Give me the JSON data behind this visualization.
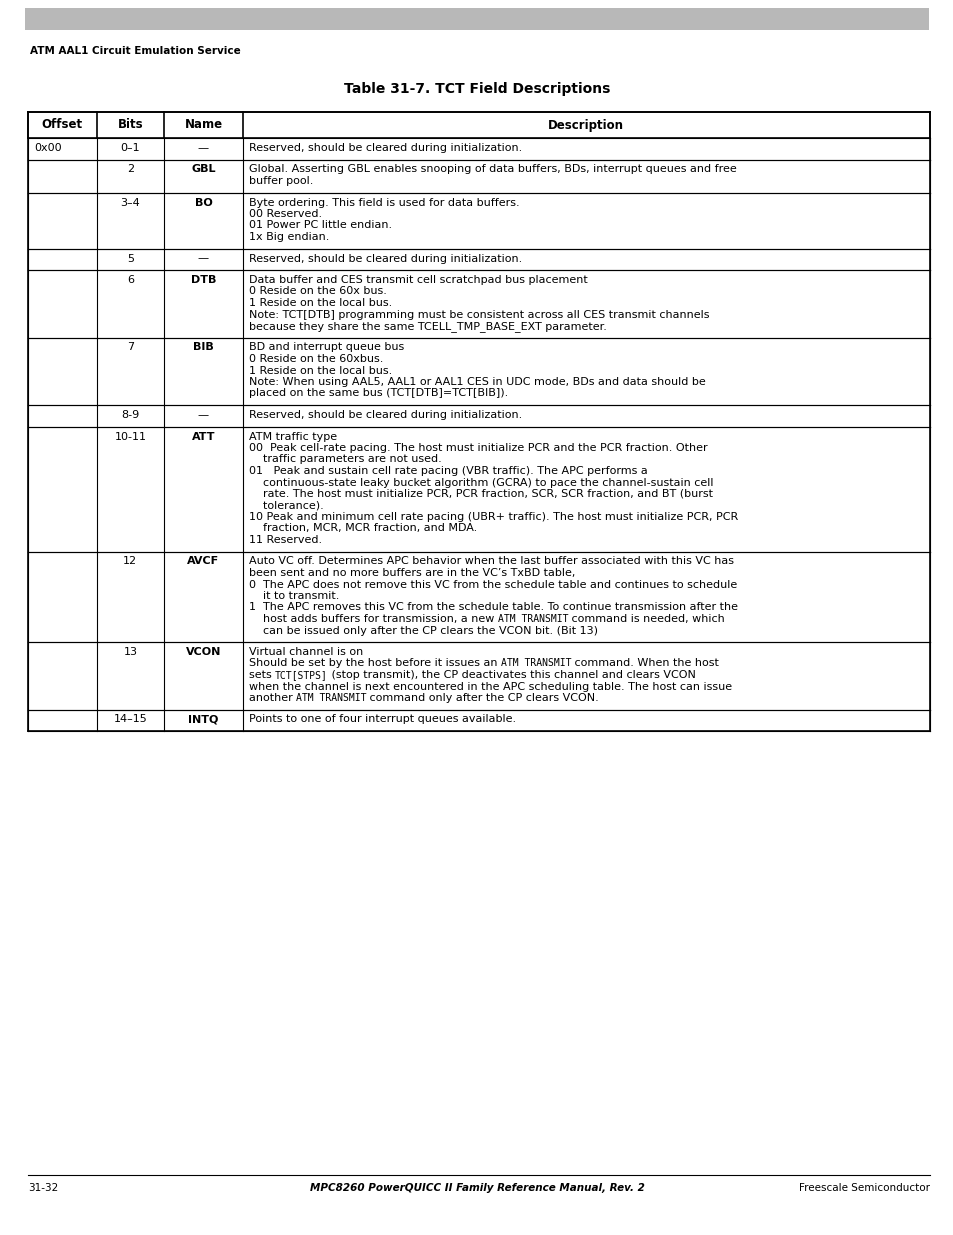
{
  "page_header": "ATM AAL1 Circuit Emulation Service",
  "table_title": "Table 31-7. TCT Field Descriptions",
  "col_headers": [
    "Offset",
    "Bits",
    "Name",
    "Description"
  ],
  "footer_left": "31-32",
  "footer_center": "MPC8260 PowerQUICC II Family Reference Manual, Rev. 2",
  "footer_right": "Freescale Semiconductor",
  "rows": [
    {
      "offset": "0x00",
      "bits": "0–1",
      "name": "—",
      "desc": "Reserved, should be cleared during initialization."
    },
    {
      "offset": "",
      "bits": "2",
      "name": "GBL",
      "desc": "Global. Asserting GBL enables snooping of data buffers, BDs, interrupt queues and free\nbuffer pool."
    },
    {
      "offset": "",
      "bits": "3–4",
      "name": "BO",
      "desc": "Byte ordering. This field is used for data buffers.\n00 Reserved.\n01 Power PC little endian.\n1x Big endian."
    },
    {
      "offset": "",
      "bits": "5",
      "name": "—",
      "desc": "Reserved, should be cleared during initialization."
    },
    {
      "offset": "",
      "bits": "6",
      "name": "DTB",
      "desc": "Data buffer and CES transmit cell scratchpad bus placement\n0 Reside on the 60x bus.\n1 Reside on the local bus.\nNote: TCT[DTB] programming must be consistent across all CES transmit channels\nbecause they share the same TCELL_TMP_BASE_EXT parameter."
    },
    {
      "offset": "",
      "bits": "7",
      "name": "BIB",
      "desc": "BD and interrupt queue bus\n0 Reside on the 60xbus.\n1 Reside on the local bus.\nNote: When using AAL5, AAL1 or AAL1 CES in UDC mode, BDs and data should be\nplaced on the same bus (TCT[DTB]=TCT[BIB])."
    },
    {
      "offset": "",
      "bits": "8-9",
      "name": "—",
      "desc": "Reserved, should be cleared during initialization."
    },
    {
      "offset": "",
      "bits": "10-11",
      "name": "ATT",
      "desc": "ATM traffic type\n00  Peak cell-rate pacing. The host must initialize PCR and the PCR fraction. Other\n    traffic parameters are not used.\n01   Peak and sustain cell rate pacing (VBR traffic). The APC performs a\n    continuous-state leaky bucket algorithm (GCRA) to pace the channel-sustain cell\n    rate. The host must initialize PCR, PCR fraction, SCR, SCR fraction, and BT (burst\n    tolerance).\n10 Peak and minimum cell rate pacing (UBR+ traffic). The host must initialize PCR, PCR\n    fraction, MCR, MCR fraction, and MDA.\n11 Reserved."
    },
    {
      "offset": "",
      "bits": "12",
      "name": "AVCF",
      "desc": "Auto VC off. Determines APC behavior when the last buffer associated with this VC has\nbeen sent and no more buffers are in the VC’s TxBD table,\n0  The APC does not remove this VC from the schedule table and continues to schedule\n    it to transmit.\n1  The APC removes this VC from the schedule table. To continue transmission after the\n    host adds buffers for transmission, a new ATM TRANSMIT command is needed, which\n    can be issued only after the CP clears the VCON bit. (Bit 13)",
      "mono_spans": [
        [
          "ATM TRANSMIT",
          1
        ]
      ]
    },
    {
      "offset": "",
      "bits": "13",
      "name": "VCON",
      "desc": "Virtual channel is on\nShould be set by the host before it issues an ATM TRANSMIT command. When the host\nsets TCT[STPS] (stop transmit), the CP deactivates this channel and clears VCON\nwhen the channel is next encountered in the APC scheduling table. The host can issue\nanother ATM TRANSMIT command only after the CP clears VCON.",
      "mono_spans": [
        [
          "ATM TRANSMIT",
          2
        ],
        [
          "TCT[STPS]",
          1
        ],
        [
          "ATM TRANSMIT",
          3
        ]
      ]
    },
    {
      "offset": "",
      "bits": "14–15",
      "name": "INTQ",
      "desc": "Points to one of four interrupt queues available."
    }
  ]
}
